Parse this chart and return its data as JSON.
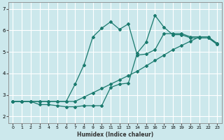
{
  "xlabel": "Humidex (Indice chaleur)",
  "bg_color": "#cce8ec",
  "line_color": "#1a7a6e",
  "grid_color": "#ffffff",
  "xlim": [
    -0.5,
    23.5
  ],
  "ylim": [
    1.7,
    7.3
  ],
  "yticks": [
    2,
    3,
    4,
    5,
    6,
    7
  ],
  "xticks": [
    0,
    1,
    2,
    3,
    4,
    5,
    6,
    7,
    8,
    9,
    10,
    11,
    12,
    13,
    14,
    15,
    16,
    17,
    18,
    19,
    20,
    21,
    22,
    23
  ],
  "curve1_x": [
    0,
    1,
    2,
    3,
    4,
    5,
    6,
    7,
    8,
    9,
    10,
    11,
    12,
    13,
    14,
    15,
    16,
    17,
    18,
    19,
    20,
    21,
    22,
    23
  ],
  "curve1_y": [
    2.7,
    2.7,
    2.7,
    2.7,
    2.7,
    2.7,
    2.7,
    2.7,
    2.9,
    3.1,
    3.3,
    3.5,
    3.7,
    3.9,
    4.1,
    4.35,
    4.6,
    4.85,
    5.1,
    5.3,
    5.5,
    5.7,
    5.7,
    5.4
  ],
  "curve2_x": [
    0,
    1,
    2,
    3,
    4,
    5,
    6,
    7,
    8,
    9,
    10,
    11,
    12,
    13,
    14,
    15,
    16,
    17,
    18,
    19,
    20,
    21,
    22,
    23
  ],
  "curve2_y": [
    2.7,
    2.7,
    2.7,
    2.55,
    2.55,
    2.5,
    2.45,
    2.45,
    2.5,
    2.5,
    2.5,
    3.35,
    3.5,
    3.55,
    4.95,
    5.45,
    6.7,
    6.15,
    5.8,
    5.8,
    5.65,
    5.65,
    5.65,
    5.35
  ],
  "curve3_x": [
    0,
    1,
    2,
    3,
    4,
    5,
    6,
    7,
    8,
    9,
    10,
    11,
    12,
    13,
    14,
    15,
    16,
    17,
    18,
    19,
    20,
    21,
    22,
    23
  ],
  "curve3_y": [
    2.7,
    2.7,
    2.7,
    2.7,
    2.7,
    2.7,
    2.7,
    3.5,
    4.4,
    5.7,
    6.1,
    6.4,
    6.05,
    6.3,
    4.85,
    4.9,
    5.1,
    5.85,
    5.85,
    5.85,
    5.7,
    5.7,
    5.7,
    5.35
  ]
}
